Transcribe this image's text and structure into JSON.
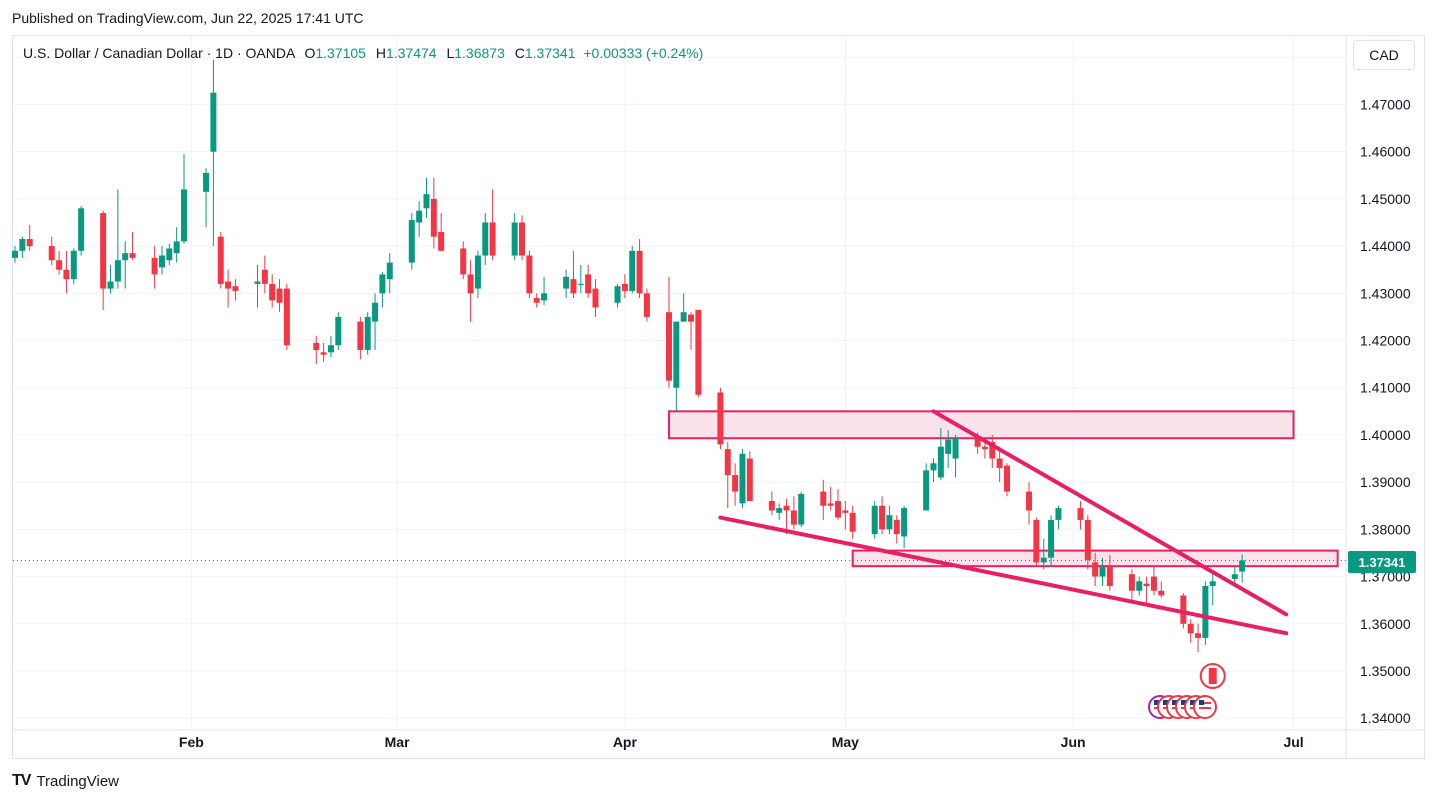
{
  "header": {
    "published": "Published on TradingView.com, Jun 22, 2025 17:41 UTC"
  },
  "legend": {
    "symbol": "U.S. Dollar / Canadian Dollar · 1D · OANDA",
    "open_label": "O",
    "open": "1.37105",
    "high_label": "H",
    "high": "1.37474",
    "low_label": "L",
    "low": "1.36873",
    "close_label": "C",
    "close": "1.37341",
    "change": "+0.00333 (+0.24%)"
  },
  "currency": "CAD",
  "last_price": "1.37341",
  "footer": {
    "brand": "TradingView",
    "logo": "TV"
  },
  "colors": {
    "up": "#089981",
    "down": "#f23645",
    "drawing": "#e91e63",
    "zone_fill": "#fadbe6"
  },
  "chart_data": {
    "type": "candlestick",
    "ylim": [
      1.3375,
      1.4845
    ],
    "yticks": [
      "1.48000",
      "1.47000",
      "1.46000",
      "1.45000",
      "1.44000",
      "1.43000",
      "1.42000",
      "1.41000",
      "1.40000",
      "1.39000",
      "1.38000",
      "1.37000",
      "1.36000",
      "1.35000",
      "1.34000"
    ],
    "xticks": [
      {
        "label": "Feb",
        "date": "2025-02-01"
      },
      {
        "label": "Mar",
        "date": "2025-03-01"
      },
      {
        "label": "Apr",
        "date": "2025-04-01"
      },
      {
        "label": "May",
        "date": "2025-05-01"
      },
      {
        "label": "Jun",
        "date": "2025-06-01"
      },
      {
        "label": "Jul",
        "date": "2025-07-01"
      }
    ],
    "ohlc": [
      [
        "2025-01-08",
        1.4375,
        1.44,
        1.4365,
        1.439
      ],
      [
        "2025-01-09",
        1.439,
        1.442,
        1.4375,
        1.4415
      ],
      [
        "2025-01-10",
        1.4415,
        1.4445,
        1.439,
        1.44
      ],
      [
        "2025-01-13",
        1.44,
        1.442,
        1.436,
        1.437
      ],
      [
        "2025-01-14",
        1.437,
        1.439,
        1.434,
        1.435
      ],
      [
        "2025-01-15",
        1.435,
        1.439,
        1.43,
        1.433
      ],
      [
        "2025-01-16",
        1.433,
        1.4395,
        1.432,
        1.439
      ],
      [
        "2025-01-17",
        1.439,
        1.4485,
        1.438,
        1.448
      ],
      [
        "2025-01-20",
        1.447,
        1.4475,
        1.4265,
        1.431
      ],
      [
        "2025-01-21",
        1.431,
        1.436,
        1.43,
        1.4325
      ],
      [
        "2025-01-22",
        1.4325,
        1.452,
        1.431,
        1.437
      ],
      [
        "2025-01-23",
        1.437,
        1.441,
        1.431,
        1.4385
      ],
      [
        "2025-01-24",
        1.4385,
        1.443,
        1.437,
        1.4375
      ],
      [
        "2025-01-27",
        1.4375,
        1.44,
        1.431,
        1.434
      ],
      [
        "2025-01-28",
        1.4355,
        1.44,
        1.434,
        1.438
      ],
      [
        "2025-01-29",
        1.437,
        1.4405,
        1.436,
        1.4395
      ],
      [
        "2025-01-30",
        1.4385,
        1.444,
        1.4365,
        1.441
      ],
      [
        "2025-01-31",
        1.441,
        1.4595,
        1.4405,
        1.452
      ],
      [
        "2025-02-03",
        1.4515,
        1.4565,
        1.444,
        1.4555
      ],
      [
        "2025-02-04",
        1.46,
        1.4795,
        1.44,
        1.4725
      ],
      [
        "2025-02-05",
        1.442,
        1.443,
        1.431,
        1.432
      ],
      [
        "2025-02-06",
        1.4325,
        1.435,
        1.427,
        1.431
      ],
      [
        "2025-02-07",
        1.4315,
        1.433,
        1.4285,
        1.4305
      ],
      [
        "2025-02-10",
        1.432,
        1.436,
        1.427,
        1.4325
      ],
      [
        "2025-02-11",
        1.435,
        1.438,
        1.43,
        1.432
      ],
      [
        "2025-02-12",
        1.432,
        1.434,
        1.427,
        1.4285
      ],
      [
        "2025-02-13",
        1.431,
        1.433,
        1.426,
        1.428
      ],
      [
        "2025-02-14",
        1.431,
        1.432,
        1.418,
        1.419
      ],
      [
        "2025-02-18",
        1.4195,
        1.421,
        1.415,
        1.418
      ],
      [
        "2025-02-19",
        1.4175,
        1.4195,
        1.4155,
        1.417
      ],
      [
        "2025-02-20",
        1.4175,
        1.421,
        1.4165,
        1.419
      ],
      [
        "2025-02-21",
        1.419,
        1.426,
        1.418,
        1.425
      ],
      [
        "2025-02-24",
        1.424,
        1.425,
        1.416,
        1.418
      ],
      [
        "2025-02-25",
        1.418,
        1.426,
        1.417,
        1.425
      ],
      [
        "2025-02-26",
        1.424,
        1.43,
        1.418,
        1.428
      ],
      [
        "2025-02-27",
        1.43,
        1.4345,
        1.427,
        1.434
      ],
      [
        "2025-02-28",
        1.433,
        1.4385,
        1.43,
        1.4365
      ],
      [
        "2025-03-03",
        1.4365,
        1.447,
        1.435,
        1.4455
      ],
      [
        "2025-03-04",
        1.445,
        1.4495,
        1.442,
        1.4475
      ],
      [
        "2025-03-05",
        1.448,
        1.4545,
        1.446,
        1.451
      ],
      [
        "2025-03-06",
        1.45,
        1.4545,
        1.4395,
        1.442
      ],
      [
        "2025-03-07",
        1.443,
        1.447,
        1.439,
        1.439
      ],
      [
        "2025-03-10",
        1.4395,
        1.441,
        1.433,
        1.434
      ],
      [
        "2025-03-11",
        1.434,
        1.437,
        1.424,
        1.43
      ],
      [
        "2025-03-12",
        1.431,
        1.439,
        1.429,
        1.438
      ],
      [
        "2025-03-13",
        1.438,
        1.447,
        1.436,
        1.445
      ],
      [
        "2025-03-14",
        1.445,
        1.452,
        1.437,
        1.438
      ],
      [
        "2025-03-17",
        1.438,
        1.447,
        1.437,
        1.445
      ],
      [
        "2025-03-18",
        1.445,
        1.4465,
        1.437,
        1.438
      ],
      [
        "2025-03-19",
        1.438,
        1.439,
        1.429,
        1.43
      ],
      [
        "2025-03-20",
        1.429,
        1.43,
        1.427,
        1.428
      ],
      [
        "2025-03-21",
        1.4285,
        1.4335,
        1.4275,
        1.43
      ],
      [
        "2025-03-24",
        1.431,
        1.435,
        1.429,
        1.4335
      ],
      [
        "2025-03-25",
        1.433,
        1.439,
        1.429,
        1.43
      ],
      [
        "2025-03-26",
        1.432,
        1.436,
        1.43,
        1.432
      ],
      [
        "2025-03-27",
        1.434,
        1.436,
        1.429,
        1.43
      ],
      [
        "2025-03-28",
        1.431,
        1.433,
        1.425,
        1.427
      ],
      [
        "2025-03-31",
        1.428,
        1.432,
        1.427,
        1.4315
      ],
      [
        "2025-04-01",
        1.432,
        1.434,
        1.429,
        1.4305
      ],
      [
        "2025-04-02",
        1.4305,
        1.44,
        1.43,
        1.439
      ],
      [
        "2025-04-03",
        1.439,
        1.4415,
        1.429,
        1.43
      ],
      [
        "2025-04-04",
        1.43,
        1.431,
        1.424,
        1.425
      ],
      [
        "2025-04-07",
        1.426,
        1.4335,
        1.41,
        1.4115
      ],
      [
        "2025-04-08",
        1.41,
        1.424,
        1.405,
        1.424
      ],
      [
        "2025-04-09",
        1.424,
        1.43,
        1.424,
        1.426
      ],
      [
        "2025-04-10",
        1.4255,
        1.426,
        1.418,
        1.424
      ],
      [
        "2025-04-11",
        1.4265,
        1.4265,
        1.408,
        1.4085
      ],
      [
        "2025-04-14",
        1.409,
        1.41,
        1.397,
        1.398
      ],
      [
        "2025-04-15",
        1.397,
        1.3985,
        1.3845,
        1.3915
      ],
      [
        "2025-04-16",
        1.3915,
        1.394,
        1.385,
        1.388
      ],
      [
        "2025-04-17",
        1.3855,
        1.397,
        1.3845,
        1.396
      ],
      [
        "2025-04-18",
        1.395,
        1.3965,
        1.386,
        1.386
      ],
      [
        "2025-04-21",
        1.386,
        1.388,
        1.383,
        1.384
      ],
      [
        "2025-04-22",
        1.3835,
        1.3855,
        1.382,
        1.3845
      ],
      [
        "2025-04-23",
        1.385,
        1.3865,
        1.379,
        1.384
      ],
      [
        "2025-04-24",
        1.384,
        1.387,
        1.38,
        1.381
      ],
      [
        "2025-04-25",
        1.381,
        1.388,
        1.3805,
        1.3875
      ],
      [
        "2025-04-28",
        1.388,
        1.3905,
        1.382,
        1.385
      ],
      [
        "2025-04-29",
        1.3855,
        1.389,
        1.384,
        1.385
      ],
      [
        "2025-04-30",
        1.386,
        1.3885,
        1.382,
        1.3825
      ],
      [
        "2025-05-01",
        1.384,
        1.386,
        1.38,
        1.3835
      ],
      [
        "2025-05-02",
        1.3835,
        1.385,
        1.378,
        1.3795
      ],
      [
        "2025-05-05",
        1.379,
        1.386,
        1.378,
        1.385
      ],
      [
        "2025-05-06",
        1.385,
        1.387,
        1.379,
        1.38
      ],
      [
        "2025-05-07",
        1.38,
        1.385,
        1.379,
        1.383
      ],
      [
        "2025-05-08",
        1.382,
        1.383,
        1.377,
        1.379
      ],
      [
        "2025-05-09",
        1.3785,
        1.385,
        1.376,
        1.3845
      ],
      [
        "2025-05-12",
        1.384,
        1.394,
        1.384,
        1.3925
      ],
      [
        "2025-05-13",
        1.3925,
        1.395,
        1.39,
        1.394
      ],
      [
        "2025-05-14",
        1.391,
        1.4015,
        1.3905,
        1.3975
      ],
      [
        "2025-05-15",
        1.396,
        1.401,
        1.393,
        1.399
      ],
      [
        "2025-05-16",
        1.395,
        1.4,
        1.391,
        1.3995
      ],
      [
        "2025-05-19",
        1.3995,
        1.4005,
        1.396,
        1.3975
      ],
      [
        "2025-05-20",
        1.3975,
        1.399,
        1.395,
        1.397
      ],
      [
        "2025-05-21",
        1.3985,
        1.4,
        1.393,
        1.395
      ],
      [
        "2025-05-22",
        1.395,
        1.3975,
        1.39,
        1.393
      ],
      [
        "2025-05-23",
        1.3935,
        1.394,
        1.387,
        1.388
      ],
      [
        "2025-05-26",
        1.388,
        1.39,
        1.381,
        1.384
      ],
      [
        "2025-05-27",
        1.382,
        1.3825,
        1.372,
        1.373
      ],
      [
        "2025-05-28",
        1.373,
        1.378,
        1.3715,
        1.374
      ],
      [
        "2025-05-29",
        1.374,
        1.383,
        1.372,
        1.382
      ],
      [
        "2025-05-30",
        1.382,
        1.385,
        1.38,
        1.3845
      ],
      [
        "2025-06-02",
        1.3845,
        1.386,
        1.38,
        1.382
      ],
      [
        "2025-06-03",
        1.382,
        1.383,
        1.3715,
        1.3735
      ],
      [
        "2025-06-04",
        1.373,
        1.375,
        1.368,
        1.37
      ],
      [
        "2025-06-05",
        1.37,
        1.374,
        1.368,
        1.372
      ],
      [
        "2025-06-06",
        1.372,
        1.3745,
        1.367,
        1.368
      ],
      [
        "2025-06-09",
        1.3705,
        1.3715,
        1.365,
        1.367
      ],
      [
        "2025-06-10",
        1.367,
        1.37,
        1.366,
        1.369
      ],
      [
        "2025-06-11",
        1.3685,
        1.37,
        1.364,
        1.368
      ],
      [
        "2025-06-12",
        1.37,
        1.372,
        1.366,
        1.367
      ],
      [
        "2025-06-13",
        1.367,
        1.369,
        1.3655,
        1.366
      ],
      [
        "2025-06-16",
        1.366,
        1.3665,
        1.359,
        1.36
      ],
      [
        "2025-06-17",
        1.36,
        1.361,
        1.356,
        1.358
      ],
      [
        "2025-06-18",
        1.358,
        1.36,
        1.354,
        1.357
      ],
      [
        "2025-06-19",
        1.357,
        1.369,
        1.3555,
        1.368
      ],
      [
        "2025-06-20",
        1.368,
        1.371,
        1.364,
        1.369
      ],
      [
        "2025-06-23",
        1.3695,
        1.372,
        1.368,
        1.3705
      ],
      [
        "2025-06-24",
        1.37105,
        1.37474,
        1.36873,
        1.37341
      ]
    ],
    "price_line": 1.37341,
    "zones": [
      {
        "from": "2025-04-07",
        "to": "2025-07-01",
        "top": 1.405,
        "bottom": 1.3993
      },
      {
        "from": "2025-05-02",
        "to": "2025-07-07",
        "top": 1.3755,
        "bottom": 1.3722
      }
    ],
    "trendlines": [
      {
        "from": [
          "2025-04-14",
          1.3825
        ],
        "to": [
          "2025-06-30",
          1.358
        ]
      },
      {
        "from": [
          "2025-05-13",
          1.405
        ],
        "to": [
          "2025-06-30",
          1.362
        ]
      }
    ],
    "events": {
      "canada_flag_date": "2025-06-20",
      "us_flags_dates": [
        "2025-06-17",
        "2025-06-18",
        "2025-06-19",
        "2025-06-20",
        "2025-06-23",
        "2025-06-24"
      ]
    }
  }
}
